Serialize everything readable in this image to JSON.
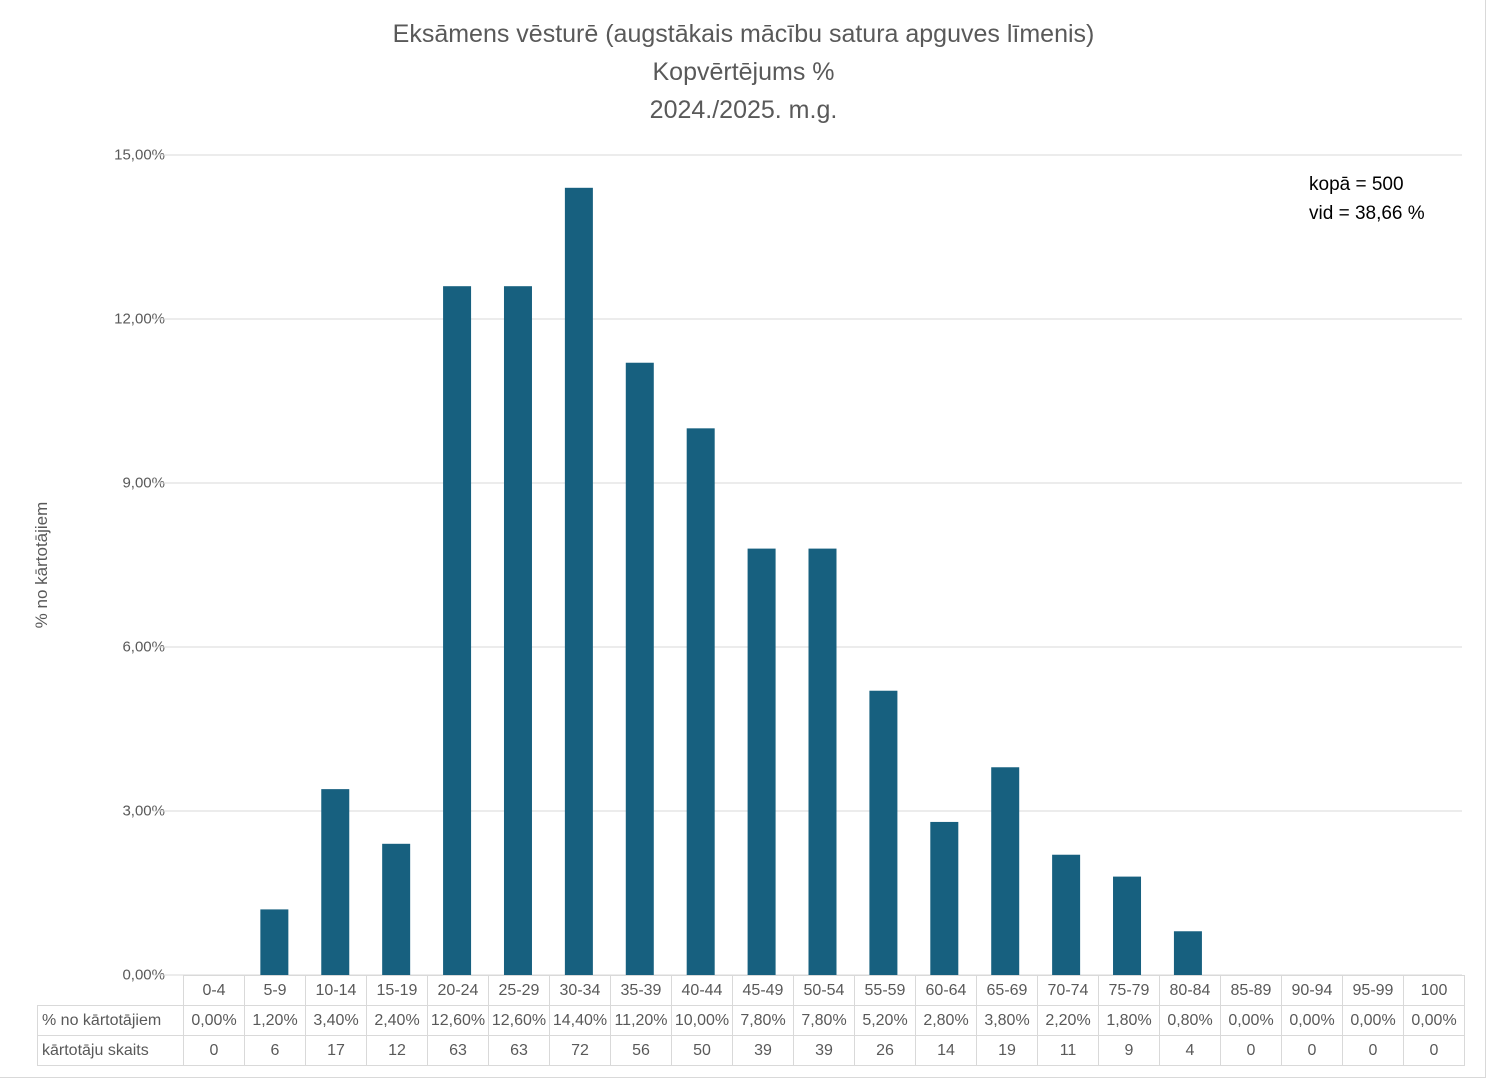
{
  "chart_data": {
    "type": "bar",
    "title": "Eksāmens vēsturē (augstākais mācību satura apguves līmenis)",
    "subtitle": "Kopvērtējums %",
    "subtitle2": "2024./2025. m.g.",
    "xlabel": "",
    "ylabel": "% no kārtotājiem",
    "ylim": [
      0,
      15
    ],
    "yticks": [
      0,
      3,
      6,
      9,
      12,
      15
    ],
    "ytick_labels": [
      "0,00%",
      "3,00%",
      "6,00%",
      "9,00%",
      "12,00%",
      "15,00%"
    ],
    "grid": true,
    "bar_color": "#17607F",
    "categories": [
      "0-4",
      "5-9",
      "10-14",
      "15-19",
      "20-24",
      "25-29",
      "30-34",
      "35-39",
      "40-44",
      "45-49",
      "50-54",
      "55-59",
      "60-64",
      "65-69",
      "70-74",
      "75-79",
      "80-84",
      "85-89",
      "90-94",
      "95-99",
      "100"
    ],
    "series": [
      {
        "name": "% no kārtotājiem",
        "values": [
          0.0,
          1.2,
          3.4,
          2.4,
          12.6,
          12.6,
          14.4,
          11.2,
          10.0,
          7.8,
          7.8,
          5.2,
          2.8,
          3.8,
          2.2,
          1.8,
          0.8,
          0.0,
          0.0,
          0.0,
          0.0
        ],
        "labels": [
          "0,00%",
          "1,20%",
          "3,40%",
          "2,40%",
          "12,60%",
          "12,60%",
          "14,40%",
          "11,20%",
          "10,00%",
          "7,80%",
          "7,80%",
          "5,20%",
          "2,80%",
          "3,80%",
          "2,20%",
          "1,80%",
          "0,80%",
          "0,00%",
          "0,00%",
          "0,00%",
          "0,00%"
        ]
      }
    ],
    "data_table": {
      "row_headers": [
        "% no kārtotājiem",
        "kārtotāju skaits"
      ],
      "counts": [
        "0",
        "6",
        "17",
        "12",
        "63",
        "63",
        "72",
        "56",
        "50",
        "39",
        "39",
        "26",
        "14",
        "19",
        "11",
        "9",
        "4",
        "0",
        "0",
        "0",
        "0"
      ]
    },
    "annotations": [
      "kopā = 500",
      "vid = 38,66 %"
    ]
  }
}
